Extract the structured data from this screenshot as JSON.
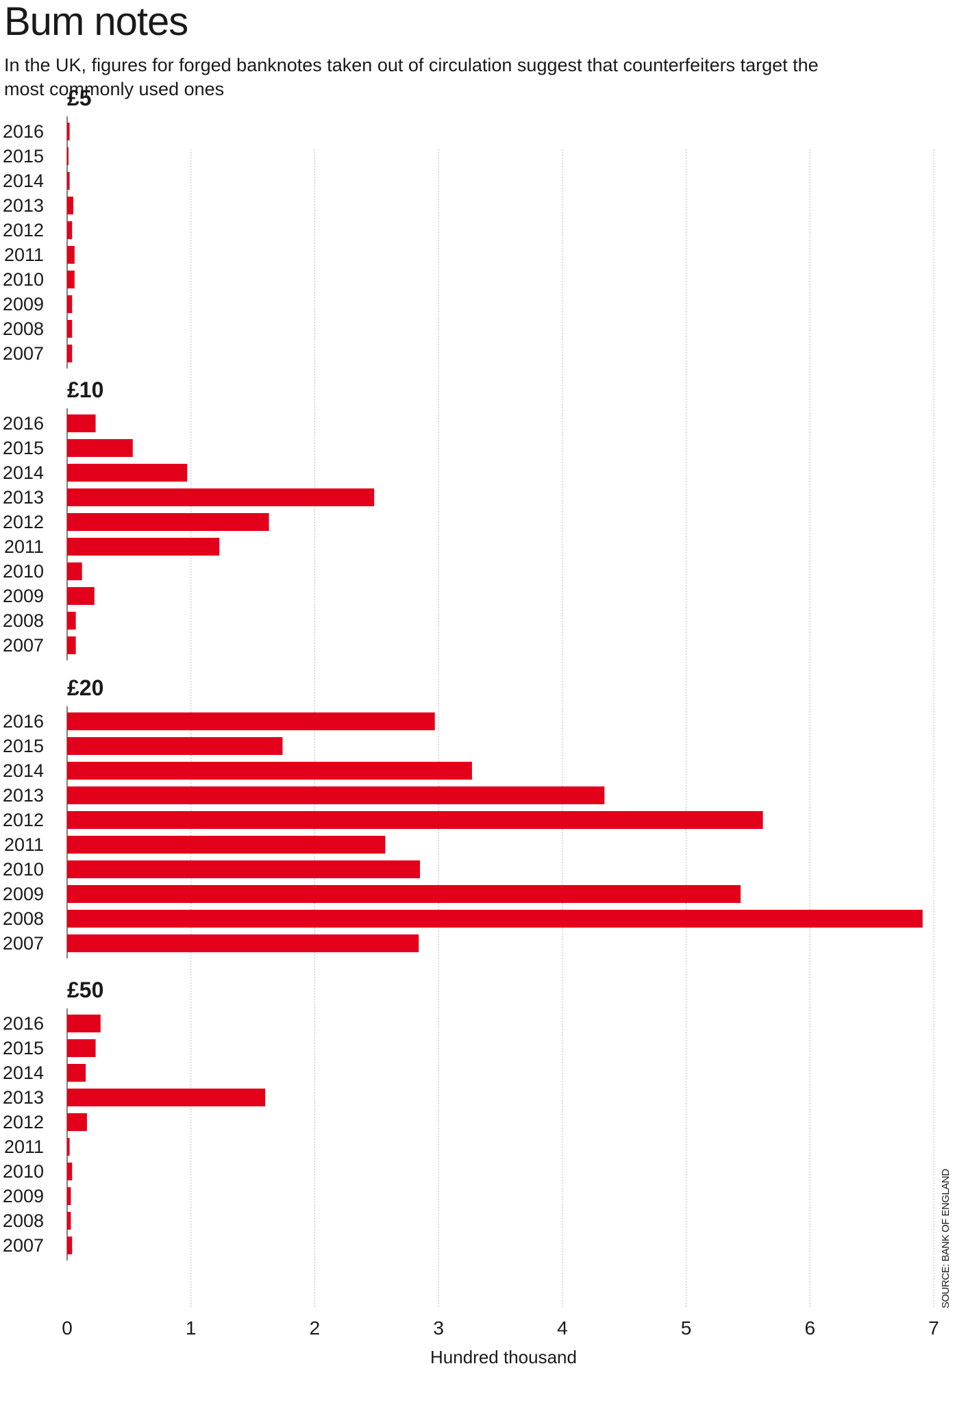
{
  "title": "Bum notes",
  "subtitle": "In the UK, figures for forged banknotes taken out of circulation suggest that counterfeiters target the most commonly used ones",
  "source": "SOURCE: BANK OF ENGLAND",
  "colors": {
    "bar": "#e3001b",
    "grid": "#bbbbbb",
    "text": "#1a1a1a"
  },
  "chart_data": {
    "type": "bar",
    "orientation": "horizontal",
    "xlabel": "Hundred thousand",
    "xlim": [
      0,
      7
    ],
    "xticks": [
      0,
      1,
      2,
      3,
      4,
      5,
      6,
      7
    ],
    "grid": true,
    "categories": [
      "2016",
      "2015",
      "2014",
      "2013",
      "2012",
      "2011",
      "2010",
      "2009",
      "2008",
      "2007"
    ],
    "panels": [
      {
        "name": "£5",
        "values": [
          0.02,
          0.01,
          0.02,
          0.05,
          0.04,
          0.06,
          0.06,
          0.04,
          0.04,
          0.04
        ]
      },
      {
        "name": "£10",
        "values": [
          0.23,
          0.53,
          0.97,
          2.48,
          1.63,
          1.23,
          0.12,
          0.22,
          0.07,
          0.07
        ]
      },
      {
        "name": "£20",
        "values": [
          2.97,
          1.74,
          3.27,
          4.34,
          5.62,
          2.57,
          2.85,
          5.44,
          6.91,
          2.84
        ]
      },
      {
        "name": "£50",
        "values": [
          0.27,
          0.23,
          0.15,
          1.6,
          0.16,
          0.02,
          0.04,
          0.03,
          0.03,
          0.04
        ]
      }
    ]
  }
}
